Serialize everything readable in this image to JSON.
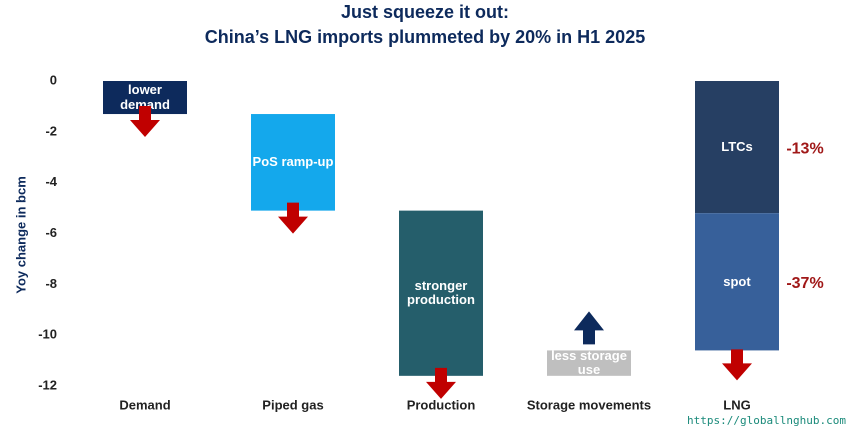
{
  "chart_data": {
    "type": "waterfall",
    "title": "Just squeeze it out:",
    "subtitle": "China’s LNG imports plummeted by 20% in H1 2025",
    "ylabel": "Yoy change in bcm",
    "categories": [
      "Demand",
      "Piped gas",
      "Production",
      "Storage movements",
      "LNG"
    ],
    "steps": [
      {
        "label": "lower demand",
        "value": -1.3,
        "color": "#0d2a5c"
      },
      {
        "label": "PoS ramp-up",
        "value": -3.8,
        "color": "#14a8ec"
      },
      {
        "label": "stronger production",
        "value": -6.5,
        "color": "#255e6b"
      },
      {
        "label": "less storage use",
        "value": 1.0,
        "color": "#bfbfbf"
      }
    ],
    "total": {
      "segments": [
        {
          "label": "LTCs",
          "value": -5.2,
          "color": "#263f63",
          "annotation": "-13%"
        },
        {
          "label": "spot",
          "value": -5.4,
          "color": "#37609a",
          "annotation": "-37%"
        }
      ]
    },
    "ylim": [
      -12,
      0
    ],
    "yticks": [
      0,
      -2,
      -4,
      -6,
      -8,
      -10,
      -12
    ],
    "source": "https://globallnghub.com"
  }
}
